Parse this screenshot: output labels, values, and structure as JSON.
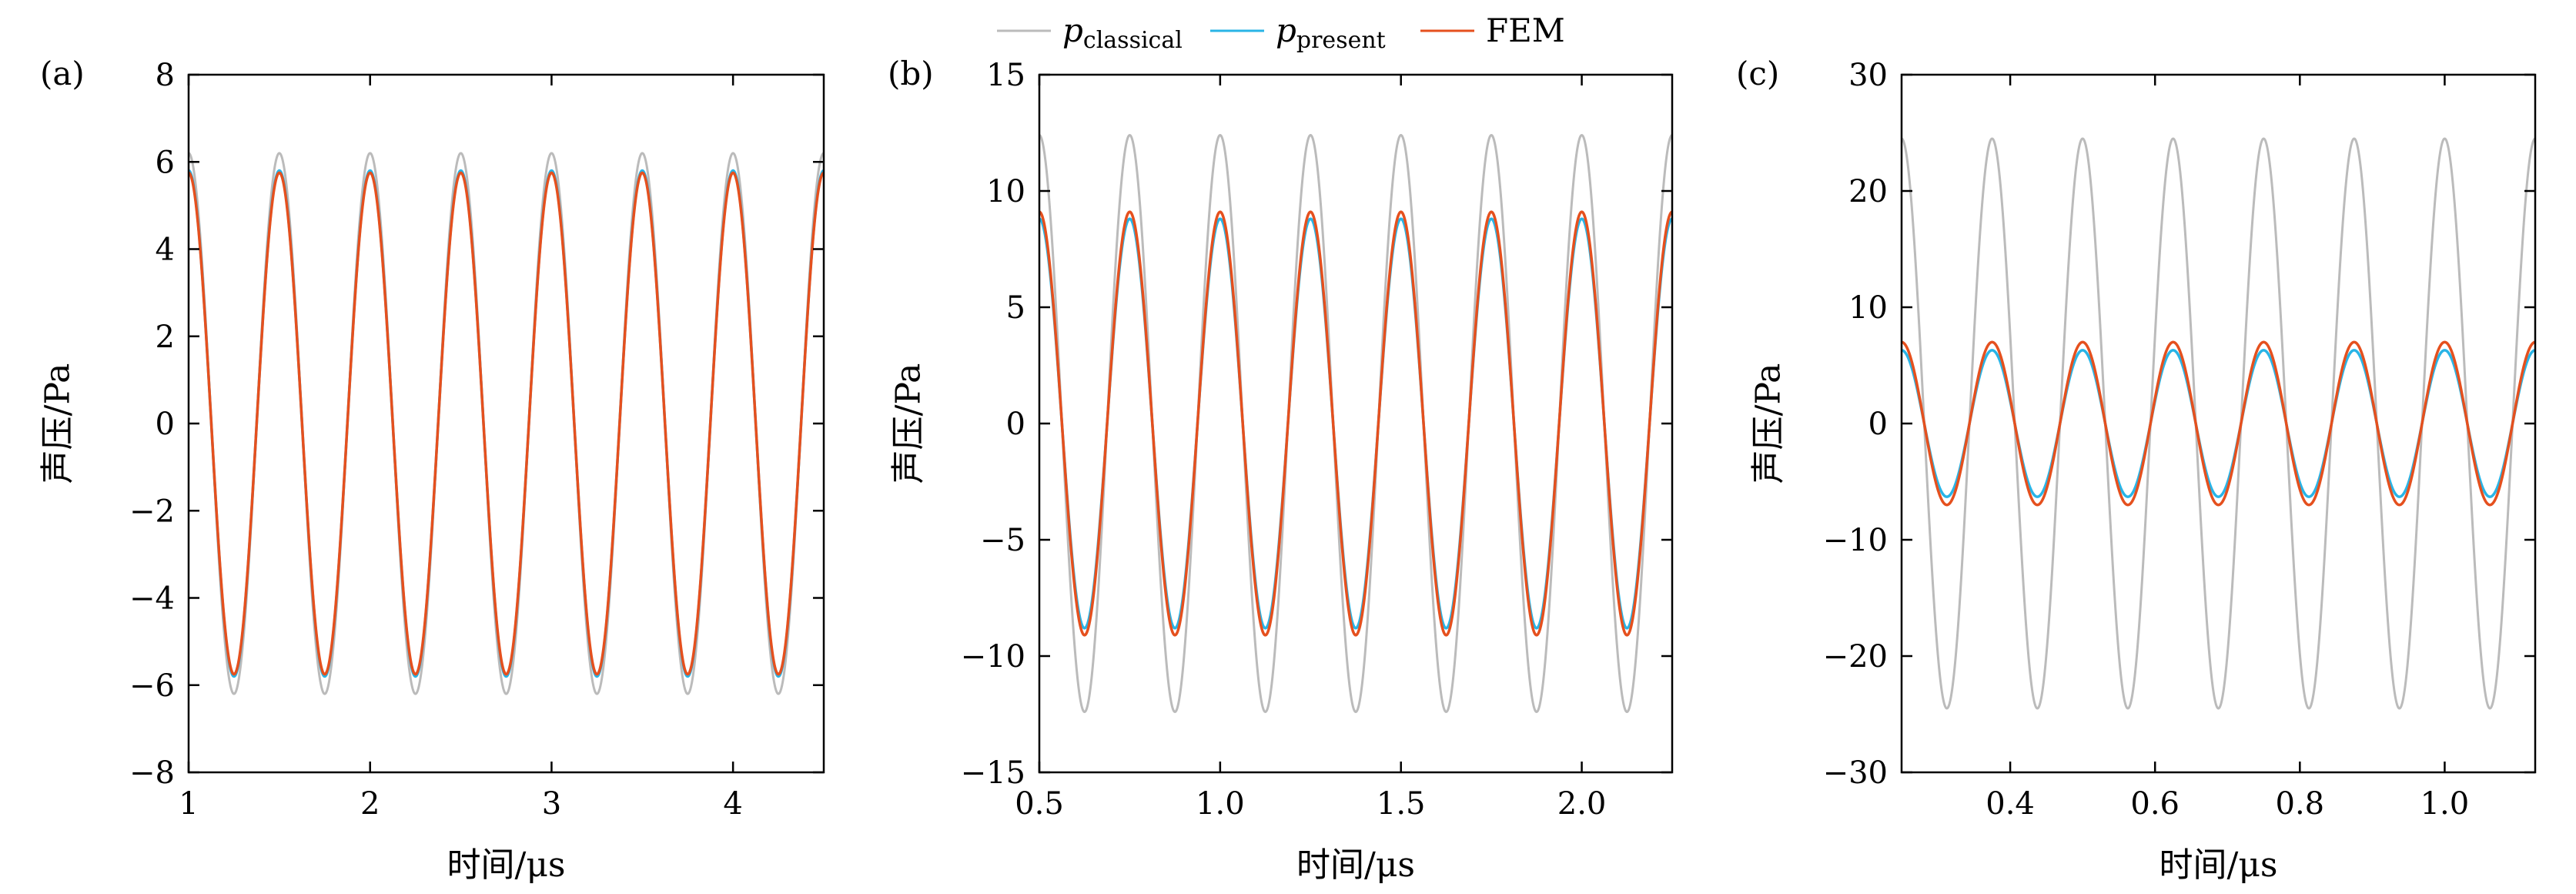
{
  "colors": {
    "classical": "#bbbbbb",
    "present": "#29b4e6",
    "fem": "#e5501e",
    "axis": "#000000"
  },
  "legend": [
    {
      "key": "classical",
      "symbol": "p",
      "subscript": "classical"
    },
    {
      "key": "present",
      "symbol": "p",
      "subscript": "present"
    },
    {
      "key": "fem",
      "symbol": "FEM",
      "subscript": ""
    }
  ],
  "chart_data": [
    {
      "type": "line",
      "panel_label": "(a)",
      "xlabel": "时间/μs",
      "ylabel": "声压/Pa",
      "xlim": [
        1,
        4.5
      ],
      "ylim": [
        -8,
        8
      ],
      "xticks": [
        1,
        2,
        3,
        4
      ],
      "xtick_labels": [
        "1",
        "2",
        "3",
        "4"
      ],
      "yticks": [
        -8,
        -6,
        -4,
        -2,
        0,
        2,
        4,
        6,
        8
      ],
      "ytick_labels": [
        "−8",
        "−6",
        "−4",
        "−2",
        "0",
        "2",
        "4",
        "6",
        "8"
      ],
      "frequency_MHz": 2.0,
      "series": [
        {
          "name": "p_classical",
          "color_key": "classical",
          "amplitude": 6.2,
          "peak_time": 1.0
        },
        {
          "name": "p_present",
          "color_key": "present",
          "amplitude": 5.8,
          "peak_time": 1.0
        },
        {
          "name": "FEM",
          "color_key": "fem",
          "amplitude": 5.75,
          "peak_time": 1.0
        }
      ]
    },
    {
      "type": "line",
      "panel_label": "(b)",
      "xlabel": "时间/μs",
      "ylabel": "声压/Pa",
      "xlim": [
        0.5,
        2.25
      ],
      "ylim": [
        -15,
        15
      ],
      "xticks": [
        0.5,
        1.0,
        1.5,
        2.0
      ],
      "xtick_labels": [
        "0.5",
        "1.0",
        "1.5",
        "2.0"
      ],
      "yticks": [
        -15,
        -10,
        -5,
        0,
        5,
        10,
        15
      ],
      "ytick_labels": [
        "−15",
        "−10",
        "−5",
        "0",
        "5",
        "10",
        "15"
      ],
      "frequency_MHz": 4.0,
      "series": [
        {
          "name": "p_classical",
          "color_key": "classical",
          "amplitude": 12.4,
          "peak_time": 0.5
        },
        {
          "name": "p_present",
          "color_key": "present",
          "amplitude": 8.8,
          "peak_time": 0.5
        },
        {
          "name": "FEM",
          "color_key": "fem",
          "amplitude": 9.1,
          "peak_time": 0.5
        }
      ]
    },
    {
      "type": "line",
      "panel_label": "(c)",
      "xlabel": "时间/μs",
      "ylabel": "声压/Pa",
      "xlim": [
        0.25,
        1.125
      ],
      "ylim": [
        -30,
        30
      ],
      "xticks": [
        0.4,
        0.6,
        0.8,
        1.0
      ],
      "xtick_labels": [
        "0.4",
        "0.6",
        "0.8",
        "1.0"
      ],
      "yticks": [
        -30,
        -20,
        -10,
        0,
        10,
        20,
        30
      ],
      "ytick_labels": [
        "−30",
        "−20",
        "−10",
        "0",
        "10",
        "20",
        "30"
      ],
      "frequency_MHz": 8.0,
      "series": [
        {
          "name": "p_classical",
          "color_key": "classical",
          "amplitude": 24.5,
          "peak_time": 0.25
        },
        {
          "name": "p_present",
          "color_key": "present",
          "amplitude": 6.3,
          "peak_time": 0.25
        },
        {
          "name": "FEM",
          "color_key": "fem",
          "amplitude": 7.0,
          "peak_time": 0.25
        }
      ]
    }
  ]
}
